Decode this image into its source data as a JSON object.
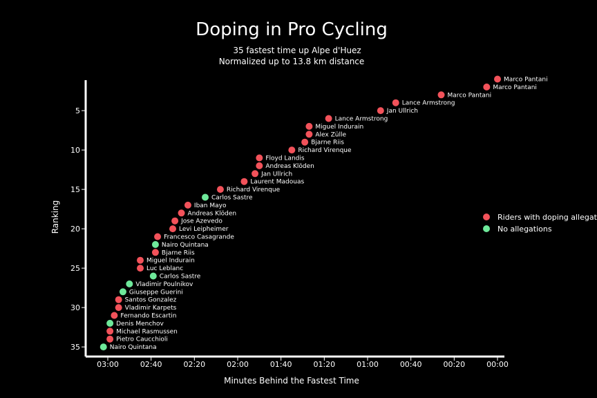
{
  "chart_data": {
    "type": "scatter",
    "title": "Doping in Pro Cycling",
    "subtitle_lines": [
      "35 fastest time up Alpe d'Huez",
      "Normalized up to 13.8 km distance"
    ],
    "xlabel": "Minutes Behind the Fastest Time",
    "ylabel": "Ranking",
    "x_unit": "seconds behind fastest",
    "x_reversed": true,
    "xlim": [
      0,
      190
    ],
    "ylim": [
      1,
      36
    ],
    "x_ticks": [
      {
        "value": 0,
        "label": "00:00"
      },
      {
        "value": 20,
        "label": "00:20"
      },
      {
        "value": 40,
        "label": "00:40"
      },
      {
        "value": 60,
        "label": "01:00"
      },
      {
        "value": 80,
        "label": "01:20"
      },
      {
        "value": 100,
        "label": "01:40"
      },
      {
        "value": 120,
        "label": "02:00"
      },
      {
        "value": 140,
        "label": "02:20"
      },
      {
        "value": 160,
        "label": "02:40"
      },
      {
        "value": 180,
        "label": "03:00"
      }
    ],
    "y_ticks": [
      5,
      10,
      15,
      20,
      25,
      30,
      35
    ],
    "colors": {
      "doping": "#f2525a",
      "clean": "#6ee89a"
    },
    "legend": {
      "position": "right",
      "items": [
        {
          "key": "doping",
          "label": "Riders with doping allegations"
        },
        {
          "key": "clean",
          "label": "No allegations"
        }
      ]
    },
    "points": [
      {
        "rank": 1,
        "seconds": 0,
        "name": "Marco Pantani",
        "doping": true
      },
      {
        "rank": 2,
        "seconds": 5,
        "name": "Marco Pantani",
        "doping": true
      },
      {
        "rank": 3,
        "seconds": 26,
        "name": "Marco Pantani",
        "doping": true
      },
      {
        "rank": 4,
        "seconds": 47,
        "name": "Lance Armstrong",
        "doping": true
      },
      {
        "rank": 5,
        "seconds": 54,
        "name": "Jan Ullrich",
        "doping": true
      },
      {
        "rank": 6,
        "seconds": 78,
        "name": "Lance Armstrong",
        "doping": true
      },
      {
        "rank": 7,
        "seconds": 87,
        "name": "Miguel Indurain",
        "doping": true
      },
      {
        "rank": 8,
        "seconds": 87,
        "name": "Alex Zülle",
        "doping": true
      },
      {
        "rank": 9,
        "seconds": 89,
        "name": "Bjarne Riis",
        "doping": true
      },
      {
        "rank": 10,
        "seconds": 95,
        "name": "Richard Virenque",
        "doping": true
      },
      {
        "rank": 11,
        "seconds": 110,
        "name": "Floyd Landis",
        "doping": true
      },
      {
        "rank": 12,
        "seconds": 110,
        "name": "Andreas Klöden",
        "doping": true
      },
      {
        "rank": 13,
        "seconds": 112,
        "name": "Jan Ullrich",
        "doping": true
      },
      {
        "rank": 14,
        "seconds": 117,
        "name": "Laurent Madouas",
        "doping": true
      },
      {
        "rank": 15,
        "seconds": 128,
        "name": "Richard Virenque",
        "doping": true
      },
      {
        "rank": 16,
        "seconds": 135,
        "name": "Carlos Sastre",
        "doping": false
      },
      {
        "rank": 17,
        "seconds": 143,
        "name": "Iban Mayo",
        "doping": true
      },
      {
        "rank": 18,
        "seconds": 146,
        "name": "Andreas Klöden",
        "doping": true
      },
      {
        "rank": 19,
        "seconds": 149,
        "name": "Jose Azevedo",
        "doping": true
      },
      {
        "rank": 20,
        "seconds": 150,
        "name": "Levi Leipheimer",
        "doping": true
      },
      {
        "rank": 21,
        "seconds": 157,
        "name": "Francesco Casagrande",
        "doping": true
      },
      {
        "rank": 22,
        "seconds": 158,
        "name": "Nairo Quintana",
        "doping": false
      },
      {
        "rank": 23,
        "seconds": 158,
        "name": "Bjarne Riis",
        "doping": true
      },
      {
        "rank": 24,
        "seconds": 165,
        "name": "Miguel Indurain",
        "doping": true
      },
      {
        "rank": 25,
        "seconds": 165,
        "name": "Luc Leblanc",
        "doping": true
      },
      {
        "rank": 26,
        "seconds": 159,
        "name": "Carlos Sastre",
        "doping": false
      },
      {
        "rank": 27,
        "seconds": 170,
        "name": "Vladimir Poulnikov",
        "doping": false
      },
      {
        "rank": 28,
        "seconds": 173,
        "name": "Giuseppe Guerini",
        "doping": false
      },
      {
        "rank": 29,
        "seconds": 175,
        "name": "Santos Gonzalez",
        "doping": true
      },
      {
        "rank": 30,
        "seconds": 175,
        "name": "Vladimir Karpets",
        "doping": true
      },
      {
        "rank": 31,
        "seconds": 177,
        "name": "Fernando Escartin",
        "doping": true
      },
      {
        "rank": 32,
        "seconds": 179,
        "name": "Denis Menchov",
        "doping": false
      },
      {
        "rank": 33,
        "seconds": 179,
        "name": "Michael Rasmussen",
        "doping": true
      },
      {
        "rank": 34,
        "seconds": 179,
        "name": "Pietro Caucchioli",
        "doping": true
      },
      {
        "rank": 35,
        "seconds": 182,
        "name": "Nairo Quintana",
        "doping": false
      }
    ]
  }
}
